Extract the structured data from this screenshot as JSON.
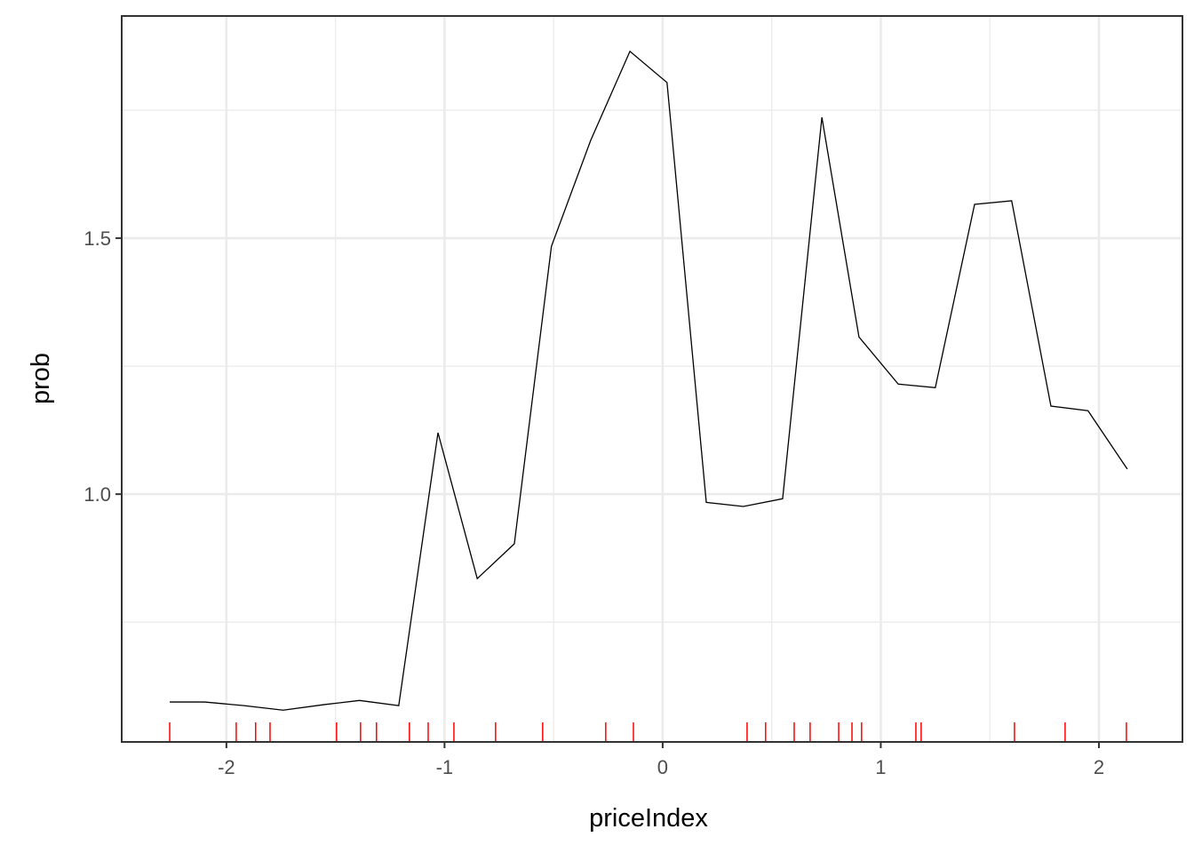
{
  "chart_data": {
    "type": "line",
    "xlabel": "priceIndex",
    "ylabel": "prob",
    "x": [
      -2.26,
      -2.1,
      -1.92,
      -1.74,
      -1.55,
      -1.39,
      -1.21,
      -1.03,
      -0.85,
      -0.68,
      -0.51,
      -0.33,
      -0.15,
      0.02,
      0.2,
      0.37,
      0.55,
      0.73,
      0.9,
      1.08,
      1.25,
      1.43,
      1.6,
      1.78,
      1.95,
      2.13
    ],
    "series": [
      {
        "color": "#000000",
        "values": [
          0.594,
          0.594,
          0.587,
          0.578,
          0.589,
          0.597,
          0.587,
          1.12,
          0.835,
          0.903,
          1.484,
          1.691,
          1.865,
          1.804,
          0.984,
          0.976,
          0.991,
          1.736,
          1.307,
          1.215,
          1.208,
          1.566,
          1.573,
          1.172,
          1.163,
          1.049
        ]
      }
    ],
    "rug": {
      "color": "#ff0000",
      "x": [
        -2.26,
        -1.955,
        -1.866,
        -1.8,
        -1.495,
        -1.385,
        -1.312,
        -1.161,
        -1.075,
        -0.957,
        -0.766,
        -0.55,
        -0.261,
        -0.134,
        0.387,
        0.472,
        0.603,
        0.676,
        0.807,
        0.868,
        0.912,
        1.161,
        1.185,
        1.613,
        1.845,
        2.126
      ]
    },
    "xlim": [
      -2.48,
      2.383
    ],
    "ylim": [
      0.516,
      1.934
    ],
    "xticks": [
      -2,
      -1,
      0,
      1,
      2
    ],
    "yticks": [
      {
        "value": 1,
        "label": "1.0"
      },
      1.5
    ],
    "x_minor_grid": [
      -1.5,
      -0.5,
      0.5,
      1.5
    ],
    "y_minor_grid": [
      0.75,
      1.25,
      1.75
    ],
    "grid": true
  }
}
